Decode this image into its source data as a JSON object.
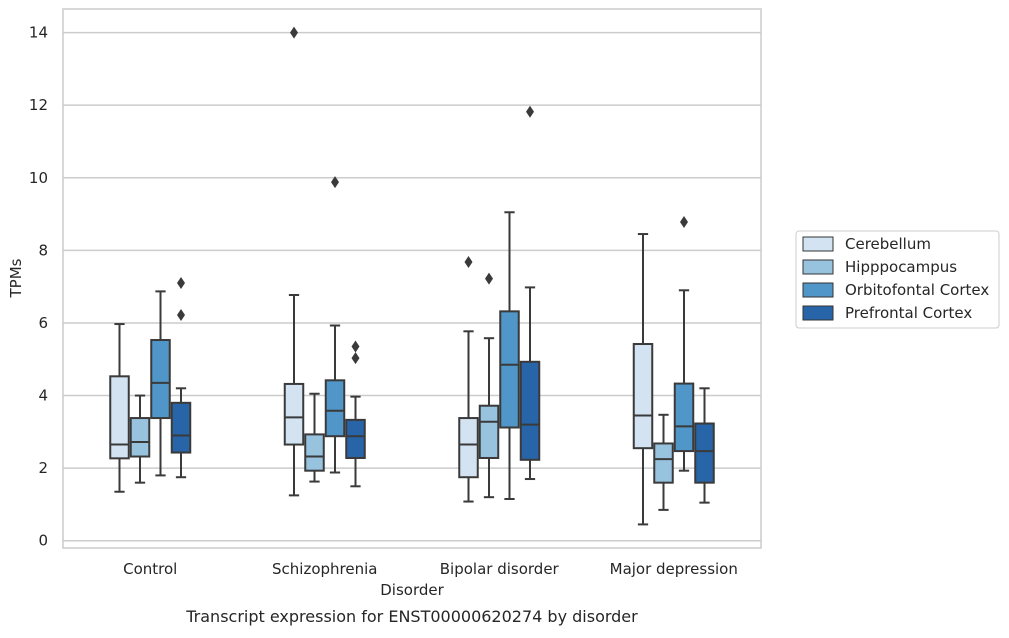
{
  "chart_data": {
    "type": "boxplot",
    "caption": "Transcript expression for ENST00000620274 by disorder",
    "xlabel": "Disorder",
    "ylabel": "TPMs",
    "ylim": [
      -0.2,
      14.65
    ],
    "yticks": [
      0,
      2,
      4,
      6,
      8,
      10,
      12,
      14
    ],
    "grid": "horizontal",
    "legend_position": "right",
    "categories": [
      "Control",
      "Schizophrenia",
      "Bipolar disorder",
      "Major depression"
    ],
    "series": [
      {
        "name": "Cerebellum",
        "color": "#d3e3f2",
        "boxes": [
          {
            "whisker_low": 1.35,
            "q1": 2.27,
            "median": 2.65,
            "q3": 4.53,
            "whisker_high": 5.97,
            "outliers": []
          },
          {
            "whisker_low": 1.25,
            "q1": 2.65,
            "median": 3.4,
            "q3": 4.32,
            "whisker_high": 6.77,
            "outliers": [
              14.0
            ]
          },
          {
            "whisker_low": 1.08,
            "q1": 1.75,
            "median": 2.65,
            "q3": 3.38,
            "whisker_high": 5.77,
            "outliers": [
              7.68
            ]
          },
          {
            "whisker_low": 0.45,
            "q1": 2.55,
            "median": 3.45,
            "q3": 5.42,
            "whisker_high": 8.45,
            "outliers": []
          }
        ]
      },
      {
        "name": "Hipppocampus",
        "color": "#98c3df",
        "boxes": [
          {
            "whisker_low": 1.6,
            "q1": 2.32,
            "median": 2.72,
            "q3": 3.38,
            "whisker_high": 4.0,
            "outliers": []
          },
          {
            "whisker_low": 1.63,
            "q1": 1.93,
            "median": 2.32,
            "q3": 2.93,
            "whisker_high": 4.05,
            "outliers": []
          },
          {
            "whisker_low": 1.2,
            "q1": 2.28,
            "median": 3.28,
            "q3": 3.72,
            "whisker_high": 5.58,
            "outliers": [
              7.22
            ]
          },
          {
            "whisker_low": 0.85,
            "q1": 1.6,
            "median": 2.25,
            "q3": 2.68,
            "whisker_high": 3.47,
            "outliers": []
          }
        ]
      },
      {
        "name": "Orbitofontal Cortex",
        "color": "#5096c8",
        "boxes": [
          {
            "whisker_low": 1.8,
            "q1": 3.38,
            "median": 4.35,
            "q3": 5.53,
            "whisker_high": 6.87,
            "outliers": []
          },
          {
            "whisker_low": 1.88,
            "q1": 2.88,
            "median": 3.58,
            "q3": 4.42,
            "whisker_high": 5.93,
            "outliers": [
              9.88
            ]
          },
          {
            "whisker_low": 1.15,
            "q1": 3.12,
            "median": 4.85,
            "q3": 6.32,
            "whisker_high": 9.05,
            "outliers": []
          },
          {
            "whisker_low": 1.93,
            "q1": 2.47,
            "median": 3.15,
            "q3": 4.33,
            "whisker_high": 6.9,
            "outliers": [
              8.78
            ]
          }
        ]
      },
      {
        "name": "Prefrontal Cortex",
        "color": "#2865a8",
        "boxes": [
          {
            "whisker_low": 1.75,
            "q1": 2.43,
            "median": 2.9,
            "q3": 3.8,
            "whisker_high": 4.2,
            "outliers": [
              6.22,
              7.1
            ]
          },
          {
            "whisker_low": 1.5,
            "q1": 2.28,
            "median": 2.88,
            "q3": 3.33,
            "whisker_high": 3.97,
            "outliers": [
              5.03,
              5.35
            ]
          },
          {
            "whisker_low": 1.7,
            "q1": 2.23,
            "median": 3.2,
            "q3": 4.93,
            "whisker_high": 6.98,
            "outliers": [
              11.82
            ]
          },
          {
            "whisker_low": 1.05,
            "q1": 1.6,
            "median": 2.47,
            "q3": 3.23,
            "whisker_high": 4.2,
            "outliers": []
          }
        ]
      }
    ]
  }
}
